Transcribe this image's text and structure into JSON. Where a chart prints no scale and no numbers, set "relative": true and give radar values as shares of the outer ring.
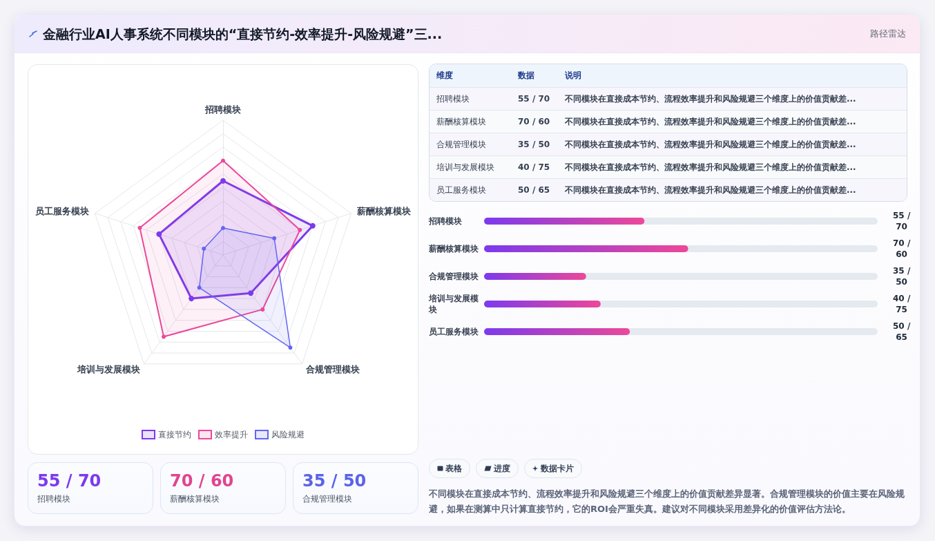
{
  "chart_data": [
    {
      "type": "radar",
      "title": "金融行业AI人事系统不同模块的“直接节约-效率提升-风险规避”三...",
      "categories": [
        "招聘模块",
        "薪酬核算模块",
        "合规管理模块",
        "培训与发展模块",
        "员工服务模块"
      ],
      "relative": true,
      "grid": true,
      "legend": "bottom",
      "marker": "circle",
      "series": [
        {
          "name": "直接节约",
          "color": "#7c3aed",
          "values": [
            0.55,
            0.7,
            0.35,
            0.4,
            0.5
          ]
        },
        {
          "name": "效率提升",
          "color": "#ec4899",
          "values": [
            0.7,
            0.6,
            0.5,
            0.75,
            0.65
          ]
        },
        {
          "name": "风险规避",
          "color": "#6366f1",
          "values": [
            0.2,
            0.4,
            0.85,
            0.3,
            0.15
          ]
        }
      ]
    },
    {
      "type": "other",
      "subtitle": "路径雷达",
      "annotations": [
        "维度",
        "数据",
        "说明",
        "招聘模块",
        "55 / 70",
        "不同模块在直接成本节约、流程效率提升和风险规避三个维度上的价值贡献差...",
        "薪酬核算模块",
        "70 / 60",
        "不同模块在直接成本节约、流程效率提升和风险规避三个维度上的价值贡献差...",
        "合规管理模块",
        "35 / 50",
        "不同模块在直接成本节约、流程效率提升和风险规避三个维度上的价值贡献差...",
        "培训与发展模块",
        "40 / 75",
        "不同模块在直接成本节约、流程效率提升和风险规避三个维度上的价值贡献差...",
        "员工服务模块",
        "50 / 65",
        "不同模块在直接成本节约、流程效率提升和风险规避三个维度上的价值贡献差..."
      ]
    },
    {
      "type": "bar",
      "orientation": "horizontal",
      "categories": [
        "招聘模块",
        "薪酬核算模块",
        "合规管理模块",
        "培训与发展模块",
        "员工服务模块"
      ],
      "values": [
        55,
        70,
        35,
        40,
        50
      ],
      "value_labels": [
        "55 / 70",
        "70 / 60",
        "35 / 50",
        "40 / 75",
        "50 / 65"
      ],
      "xlim": [
        0,
        135
      ],
      "color": "#7c3aed"
    },
    {
      "type": "other",
      "annotations": [
        "55 / 70",
        "招聘模块",
        "70 / 60",
        "薪酬核算模块",
        "35 / 50",
        "合规管理模块"
      ]
    },
    {
      "type": "other",
      "annotations": [
        "表格",
        "进度",
        "数据卡片",
        "不同模块在直接成本节约、流程效率提升和风险规避三个维度上的价值贡献差异显著。合规管理模块的价值主要在风险规避，如果在测算中只计算直接节约，它的ROI会严重失真。建议对不同模块采用差异化的价值评估方法论。"
      ]
    }
  ]
}
